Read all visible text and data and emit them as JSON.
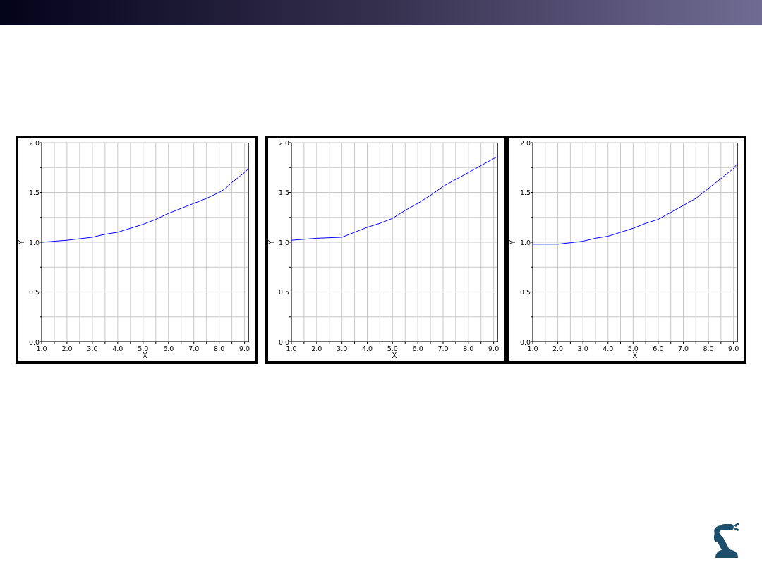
{
  "chart_data": [
    {
      "type": "line",
      "xlabel": "X",
      "ylabel": "Y",
      "x": [
        1,
        1.5,
        2,
        2.5,
        3,
        3.5,
        4,
        4.5,
        5,
        5.5,
        6,
        6.5,
        7,
        7.5,
        8,
        8.25,
        8.5,
        9,
        9.15
      ],
      "series": [
        {
          "color": "#0000ff",
          "values": [
            1.0,
            1.01,
            1.02,
            1.035,
            1.05,
            1.08,
            1.1,
            1.14,
            1.18,
            1.23,
            1.29,
            1.34,
            1.39,
            1.44,
            1.5,
            1.54,
            1.6,
            1.7,
            1.74
          ]
        }
      ],
      "xlim": [
        1,
        9.15
      ],
      "ylim": [
        0,
        2
      ],
      "xticks": [
        {
          "value": 1,
          "label": "1.0"
        },
        {
          "value": 1.5,
          "label": null
        },
        {
          "value": 2,
          "label": "2.0"
        },
        {
          "value": 2.5,
          "label": null
        },
        {
          "value": 3,
          "label": "3.0"
        },
        {
          "value": 3.5,
          "label": null
        },
        {
          "value": 4,
          "label": "4.0"
        },
        {
          "value": 4.5,
          "label": null
        },
        {
          "value": 5,
          "label": "5.0"
        },
        {
          "value": 5.5,
          "label": null
        },
        {
          "value": 6,
          "label": "6.0"
        },
        {
          "value": 6.5,
          "label": null
        },
        {
          "value": 7,
          "label": "7.0"
        },
        {
          "value": 7.5,
          "label": null
        },
        {
          "value": 8,
          "label": "8.0"
        },
        {
          "value": 8.5,
          "label": null
        },
        {
          "value": 9,
          "label": "9.0"
        }
      ],
      "yticks": [
        {
          "value": 0,
          "label": "0.0"
        },
        {
          "value": 0.25,
          "label": null
        },
        {
          "value": 0.5,
          "label": "0.5"
        },
        {
          "value": 0.75,
          "label": null
        },
        {
          "value": 1,
          "label": "1.0"
        },
        {
          "value": 1.25,
          "label": null
        },
        {
          "value": 1.5,
          "label": "1.5"
        },
        {
          "value": 1.75,
          "label": null
        },
        {
          "value": 2,
          "label": "2.0"
        }
      ],
      "grid": true
    },
    {
      "type": "line",
      "xlabel": "X",
      "ylabel": "Y",
      "x": [
        1,
        1.5,
        2,
        2.5,
        3,
        3.5,
        4,
        4.5,
        5,
        5.5,
        6,
        6.5,
        7,
        7.5,
        8,
        8.5,
        9,
        9.15
      ],
      "series": [
        {
          "color": "#0000ff",
          "values": [
            1.02,
            1.03,
            1.04,
            1.045,
            1.05,
            1.1,
            1.15,
            1.19,
            1.24,
            1.32,
            1.39,
            1.47,
            1.56,
            1.63,
            1.7,
            1.77,
            1.84,
            1.86
          ]
        }
      ],
      "xlim": [
        1,
        9.15
      ],
      "ylim": [
        0,
        2
      ],
      "xticks": [
        {
          "value": 1,
          "label": "1.0"
        },
        {
          "value": 1.5,
          "label": null
        },
        {
          "value": 2,
          "label": "2.0"
        },
        {
          "value": 2.5,
          "label": null
        },
        {
          "value": 3,
          "label": "3.0"
        },
        {
          "value": 3.5,
          "label": null
        },
        {
          "value": 4,
          "label": "4.0"
        },
        {
          "value": 4.5,
          "label": null
        },
        {
          "value": 5,
          "label": "5.0"
        },
        {
          "value": 5.5,
          "label": null
        },
        {
          "value": 6,
          "label": "6.0"
        },
        {
          "value": 6.5,
          "label": null
        },
        {
          "value": 7,
          "label": "7.0"
        },
        {
          "value": 7.5,
          "label": null
        },
        {
          "value": 8,
          "label": "8.0"
        },
        {
          "value": 8.5,
          "label": null
        },
        {
          "value": 9,
          "label": "9.0"
        }
      ],
      "yticks": [
        {
          "value": 0,
          "label": "0.0"
        },
        {
          "value": 0.25,
          "label": null
        },
        {
          "value": 0.5,
          "label": "0.5"
        },
        {
          "value": 0.75,
          "label": null
        },
        {
          "value": 1,
          "label": "1.0"
        },
        {
          "value": 1.25,
          "label": null
        },
        {
          "value": 1.5,
          "label": "1.5"
        },
        {
          "value": 1.75,
          "label": null
        },
        {
          "value": 2,
          "label": "2.0"
        }
      ],
      "grid": true
    },
    {
      "type": "line",
      "xlabel": "X",
      "ylabel": "Y",
      "x": [
        1,
        1.5,
        2,
        2.5,
        3,
        3.5,
        4,
        4.5,
        5,
        5.5,
        6,
        6.5,
        7,
        7.5,
        8,
        8.5,
        9,
        9.15
      ],
      "series": [
        {
          "color": "#0000ff",
          "values": [
            0.98,
            0.98,
            0.98,
            0.995,
            1.01,
            1.04,
            1.06,
            1.1,
            1.14,
            1.19,
            1.23,
            1.3,
            1.37,
            1.44,
            1.54,
            1.64,
            1.74,
            1.79
          ]
        }
      ],
      "xlim": [
        1,
        9.15
      ],
      "ylim": [
        0,
        2
      ],
      "xticks": [
        {
          "value": 1,
          "label": "1.0"
        },
        {
          "value": 1.5,
          "label": null
        },
        {
          "value": 2,
          "label": "2.0"
        },
        {
          "value": 2.5,
          "label": null
        },
        {
          "value": 3,
          "label": "3.0"
        },
        {
          "value": 3.5,
          "label": null
        },
        {
          "value": 4,
          "label": "4.0"
        },
        {
          "value": 4.5,
          "label": null
        },
        {
          "value": 5,
          "label": "5.0"
        },
        {
          "value": 5.5,
          "label": null
        },
        {
          "value": 6,
          "label": "6.0"
        },
        {
          "value": 6.5,
          "label": null
        },
        {
          "value": 7,
          "label": "7.0"
        },
        {
          "value": 7.5,
          "label": null
        },
        {
          "value": 8,
          "label": "8.0"
        },
        {
          "value": 8.5,
          "label": null
        },
        {
          "value": 9,
          "label": "9.0"
        }
      ],
      "yticks": [
        {
          "value": 0,
          "label": "0.0"
        },
        {
          "value": 0.25,
          "label": null
        },
        {
          "value": 0.5,
          "label": "0.5"
        },
        {
          "value": 0.75,
          "label": null
        },
        {
          "value": 1,
          "label": "1.0"
        },
        {
          "value": 1.25,
          "label": null
        },
        {
          "value": 1.5,
          "label": "1.5"
        },
        {
          "value": 1.75,
          "label": null
        },
        {
          "value": 2,
          "label": "2.0"
        }
      ],
      "grid": true
    }
  ]
}
